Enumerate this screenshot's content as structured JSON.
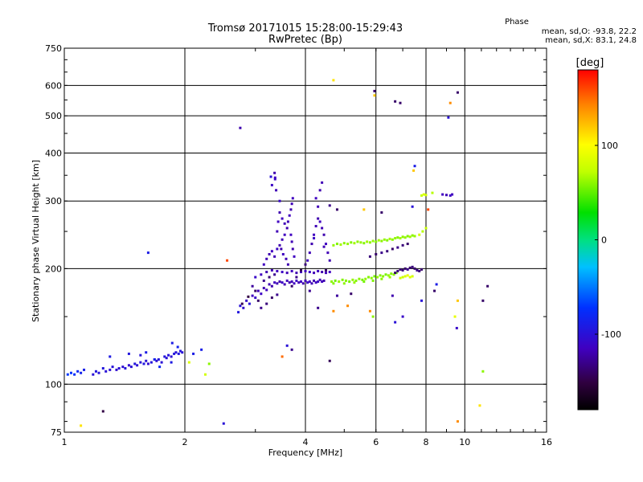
{
  "header": {
    "title": "Tromsø 20171015 15:28:00-15:29:43",
    "subtitle": "RwPretec (Bp)"
  },
  "phase_stats": {
    "heading": "Phase",
    "line1": "mean, sd,O: -93.8, 22.2",
    "line2": "mean, sd,X:  83.1, 24.8"
  },
  "colorbar": {
    "label": "[deg]",
    "ticks": [
      {
        "value": 100,
        "label": "100"
      },
      {
        "value": 0,
        "label": "0"
      },
      {
        "value": -100,
        "label": "-100"
      }
    ],
    "range": [
      -180,
      180
    ]
  },
  "chart_data": {
    "type": "scatter",
    "title": "Tromsø 20171015 15:28:00-15:29:43",
    "subtitle": "RwPretec (Bp)",
    "xlabel": "Frequency [MHz]",
    "ylabel": "Stationary phase Virtual Height [km]",
    "x_scale": "log",
    "y_scale": "log",
    "xlim": [
      1,
      16
    ],
    "ylim": [
      75,
      750
    ],
    "x_ticks": [
      {
        "value": 1,
        "label": "1"
      },
      {
        "value": 2,
        "label": "2"
      },
      {
        "value": 4,
        "label": "4"
      },
      {
        "value": 6,
        "label": "6"
      },
      {
        "value": 8,
        "label": "8"
      },
      {
        "value": 10,
        "label": "10"
      },
      {
        "value": 16,
        "label": "16"
      }
    ],
    "y_ticks": [
      {
        "value": 75,
        "label": "75"
      },
      {
        "value": 100,
        "label": "100"
      },
      {
        "value": 200,
        "label": "200"
      },
      {
        "value": 300,
        "label": "300"
      },
      {
        "value": 400,
        "label": "400"
      },
      {
        "value": 500,
        "label": "500"
      },
      {
        "value": 600,
        "label": "600"
      },
      {
        "value": 750,
        "label": "750"
      }
    ],
    "grid": true,
    "color_by": "phase_deg",
    "points": [
      [
        1.02,
        106,
        -70
      ],
      [
        1.04,
        107,
        -72
      ],
      [
        1.06,
        106,
        -75
      ],
      [
        1.08,
        108,
        -80
      ],
      [
        1.1,
        107,
        -85
      ],
      [
        1.12,
        109,
        -88
      ],
      [
        1.18,
        106,
        -100
      ],
      [
        1.2,
        108,
        -95
      ],
      [
        1.22,
        107,
        -98
      ],
      [
        1.25,
        110,
        -95
      ],
      [
        1.27,
        108,
        -100
      ],
      [
        1.3,
        109,
        -102
      ],
      [
        1.32,
        111,
        -99
      ],
      [
        1.35,
        109,
        -104
      ],
      [
        1.37,
        110,
        -100
      ],
      [
        1.4,
        111,
        -103
      ],
      [
        1.42,
        110,
        -98
      ],
      [
        1.45,
        112,
        -105
      ],
      [
        1.47,
        111,
        -100
      ],
      [
        1.5,
        113,
        -96
      ],
      [
        1.52,
        112,
        -102
      ],
      [
        1.55,
        114,
        -99
      ],
      [
        1.58,
        113,
        -95
      ],
      [
        1.6,
        115,
        -100
      ],
      [
        1.62,
        113,
        -104
      ],
      [
        1.65,
        114,
        -97
      ],
      [
        1.68,
        116,
        -100
      ],
      [
        1.7,
        115,
        -103
      ],
      [
        1.72,
        116,
        -98
      ],
      [
        1.75,
        114,
        -101
      ],
      [
        1.78,
        118,
        -96
      ],
      [
        1.8,
        117,
        -100
      ],
      [
        1.82,
        119,
        -98
      ],
      [
        1.85,
        118,
        -102
      ],
      [
        1.88,
        120,
        -95
      ],
      [
        1.9,
        121,
        -99
      ],
      [
        1.93,
        120,
        -94
      ],
      [
        1.95,
        122,
        -97
      ],
      [
        1.97,
        121,
        -100
      ],
      [
        1.3,
        118,
        -92
      ],
      [
        1.45,
        120,
        -95
      ],
      [
        1.55,
        119,
        -98
      ],
      [
        1.6,
        121,
        -90
      ],
      [
        1.68,
        116,
        -85
      ],
      [
        1.73,
        111,
        -80
      ],
      [
        1.85,
        114,
        -92
      ],
      [
        2.1,
        120,
        -90
      ],
      [
        2.2,
        123,
        -88
      ],
      [
        1.92,
        125,
        -85
      ],
      [
        1.86,
        128,
        -90
      ],
      [
        1.62,
        220,
        -90
      ],
      [
        2.25,
        106,
        80
      ],
      [
        2.3,
        113,
        60
      ],
      [
        2.05,
        114,
        85
      ],
      [
        2.72,
        154,
        -95
      ],
      [
        2.75,
        160,
        -100
      ],
      [
        2.8,
        158,
        -105
      ],
      [
        2.85,
        165,
        -110
      ],
      [
        2.9,
        162,
        -100
      ],
      [
        2.95,
        170,
        -115
      ],
      [
        3.0,
        168,
        -110
      ],
      [
        3.05,
        175,
        -118
      ],
      [
        3.1,
        172,
        -112
      ],
      [
        3.15,
        178,
        -120
      ],
      [
        3.2,
        176,
        -115
      ],
      [
        3.25,
        182,
        -118
      ],
      [
        3.3,
        180,
        -120
      ],
      [
        3.35,
        184,
        -115
      ],
      [
        3.4,
        183,
        -118
      ],
      [
        3.45,
        185,
        -120
      ],
      [
        3.5,
        184,
        -112
      ],
      [
        3.55,
        182,
        -118
      ],
      [
        3.6,
        186,
        -115
      ],
      [
        3.65,
        184,
        -120
      ],
      [
        3.7,
        185,
        -118
      ],
      [
        3.75,
        183,
        -115
      ],
      [
        3.8,
        186,
        -112
      ],
      [
        3.85,
        184,
        -118
      ],
      [
        3.9,
        185,
        -115
      ],
      [
        3.95,
        183,
        -120
      ],
      [
        4.0,
        186,
        -118
      ],
      [
        4.05,
        184,
        -112
      ],
      [
        4.1,
        185,
        -115
      ],
      [
        4.15,
        183,
        -118
      ],
      [
        4.2,
        186,
        -120
      ],
      [
        4.25,
        184,
        -115
      ],
      [
        4.3,
        185,
        -112
      ],
      [
        4.35,
        187,
        -118
      ],
      [
        4.4,
        185,
        -115
      ],
      [
        4.45,
        186,
        -120
      ],
      [
        3.0,
        190,
        -110
      ],
      [
        3.1,
        193,
        -115
      ],
      [
        3.2,
        196,
        -120
      ],
      [
        3.3,
        198,
        -118
      ],
      [
        3.4,
        197,
        -115
      ],
      [
        3.5,
        196,
        -112
      ],
      [
        3.6,
        195,
        -118
      ],
      [
        3.7,
        197,
        -115
      ],
      [
        3.8,
        195,
        -120
      ],
      [
        3.9,
        196,
        -118
      ],
      [
        4.0,
        197,
        -115
      ],
      [
        4.1,
        196,
        -112
      ],
      [
        4.2,
        195,
        -118
      ],
      [
        4.3,
        197,
        -115
      ],
      [
        4.4,
        196,
        -120
      ],
      [
        4.5,
        195,
        -118
      ],
      [
        4.6,
        196,
        -115
      ],
      [
        3.15,
        205,
        -115
      ],
      [
        3.2,
        212,
        -118
      ],
      [
        3.25,
        218,
        -120
      ],
      [
        3.3,
        222,
        -115
      ],
      [
        3.35,
        215,
        -118
      ],
      [
        3.4,
        225,
        -112
      ],
      [
        3.45,
        230,
        -120
      ],
      [
        3.5,
        238,
        -118
      ],
      [
        3.55,
        245,
        -115
      ],
      [
        3.6,
        255,
        -120
      ],
      [
        3.62,
        265,
        -118
      ],
      [
        3.65,
        275,
        -115
      ],
      [
        3.68,
        285,
        -120
      ],
      [
        3.7,
        295,
        -118
      ],
      [
        3.72,
        305,
        -115
      ],
      [
        3.68,
        245,
        -115
      ],
      [
        3.7,
        235,
        -118
      ],
      [
        3.72,
        225,
        -120
      ],
      [
        3.75,
        215,
        -115
      ],
      [
        3.4,
        250,
        -118
      ],
      [
        3.42,
        265,
        -115
      ],
      [
        3.45,
        280,
        -120
      ],
      [
        3.38,
        320,
        -118
      ],
      [
        3.36,
        345,
        -115
      ],
      [
        3.3,
        330,
        -112
      ],
      [
        3.35,
        355,
        -120
      ],
      [
        3.5,
        270,
        -115
      ],
      [
        3.55,
        262,
        -118
      ],
      [
        3.48,
        225,
        -120
      ],
      [
        3.52,
        218,
        -115
      ],
      [
        3.58,
        212,
        -118
      ],
      [
        3.62,
        205,
        -120
      ],
      [
        4.05,
        210,
        -115
      ],
      [
        4.1,
        220,
        -118
      ],
      [
        4.15,
        232,
        -120
      ],
      [
        4.2,
        245,
        -115
      ],
      [
        4.25,
        258,
        -118
      ],
      [
        4.3,
        270,
        -120
      ],
      [
        4.35,
        265,
        -115
      ],
      [
        4.4,
        255,
        -118
      ],
      [
        4.45,
        245,
        -120
      ],
      [
        4.5,
        232,
        -115
      ],
      [
        4.55,
        220,
        -118
      ],
      [
        4.6,
        210,
        -120
      ],
      [
        4.3,
        290,
        -118
      ],
      [
        4.25,
        305,
        -115
      ],
      [
        4.35,
        320,
        -120
      ],
      [
        4.4,
        335,
        -118
      ],
      [
        4.2,
        240,
        -112
      ],
      [
        4.45,
        228,
        -118
      ],
      [
        4.65,
        185,
        60
      ],
      [
        4.75,
        186,
        55
      ],
      [
        4.85,
        185,
        62
      ],
      [
        4.95,
        187,
        58
      ],
      [
        5.05,
        186,
        60
      ],
      [
        5.15,
        185,
        55
      ],
      [
        5.25,
        187,
        62
      ],
      [
        5.35,
        186,
        58
      ],
      [
        5.45,
        188,
        60
      ],
      [
        5.55,
        187,
        55
      ],
      [
        5.65,
        188,
        62
      ],
      [
        5.75,
        190,
        58
      ],
      [
        5.85,
        189,
        60
      ],
      [
        5.95,
        191,
        55
      ],
      [
        6.05,
        190,
        62
      ],
      [
        6.15,
        192,
        58
      ],
      [
        6.25,
        191,
        60
      ],
      [
        6.35,
        193,
        55
      ],
      [
        6.45,
        192,
        62
      ],
      [
        6.55,
        194,
        58
      ],
      [
        6.65,
        193,
        60
      ],
      [
        6.75,
        195,
        55
      ],
      [
        4.7,
        183,
        58
      ],
      [
        5.0,
        183,
        60
      ],
      [
        5.3,
        184,
        62
      ],
      [
        5.6,
        185,
        55
      ],
      [
        5.9,
        186,
        58
      ],
      [
        6.2,
        188,
        60
      ],
      [
        6.5,
        190,
        62
      ],
      [
        4.7,
        230,
        62
      ],
      [
        4.8,
        232,
        58
      ],
      [
        4.9,
        231,
        65
      ],
      [
        5.0,
        233,
        60
      ],
      [
        5.1,
        232,
        62
      ],
      [
        5.2,
        234,
        58
      ],
      [
        5.3,
        233,
        65
      ],
      [
        5.4,
        235,
        60
      ],
      [
        5.5,
        234,
        62
      ],
      [
        5.6,
        233,
        58
      ],
      [
        5.7,
        235,
        65
      ],
      [
        5.8,
        234,
        60
      ],
      [
        5.9,
        236,
        62
      ],
      [
        6.0,
        235,
        58
      ],
      [
        6.1,
        237,
        65
      ],
      [
        6.2,
        236,
        60
      ],
      [
        6.3,
        238,
        62
      ],
      [
        6.4,
        237,
        58
      ],
      [
        6.5,
        239,
        65
      ],
      [
        6.6,
        238,
        60
      ],
      [
        6.7,
        240,
        62
      ],
      [
        6.8,
        241,
        58
      ],
      [
        6.9,
        240,
        65
      ],
      [
        7.0,
        242,
        60
      ],
      [
        7.1,
        241,
        62
      ],
      [
        7.2,
        243,
        58
      ],
      [
        7.3,
        242,
        65
      ],
      [
        7.4,
        244,
        60
      ],
      [
        7.5,
        243,
        62
      ],
      [
        6.9,
        189,
        80
      ],
      [
        7.0,
        190,
        75
      ],
      [
        7.1,
        191,
        85
      ],
      [
        7.2,
        192,
        90
      ],
      [
        7.3,
        190,
        85
      ],
      [
        7.4,
        191,
        80
      ],
      [
        7.8,
        310,
        75
      ],
      [
        7.9,
        312,
        85
      ],
      [
        8.0,
        311,
        80
      ],
      [
        8.3,
        315,
        70
      ],
      [
        8.8,
        312,
        -115
      ],
      [
        9.0,
        311,
        -118
      ],
      [
        9.2,
        310,
        -112
      ],
      [
        9.3,
        312,
        -115
      ],
      [
        7.85,
        250,
        70
      ],
      [
        8.0,
        255,
        75
      ],
      [
        7.7,
        245,
        80
      ],
      [
        6.7,
        195,
        -140
      ],
      [
        6.8,
        197,
        -135
      ],
      [
        6.9,
        199,
        -140
      ],
      [
        7.0,
        198,
        -135
      ],
      [
        7.1,
        200,
        -140
      ],
      [
        7.2,
        199,
        -130
      ],
      [
        7.3,
        201,
        -140
      ],
      [
        7.4,
        202,
        -135
      ],
      [
        7.5,
        200,
        -140
      ],
      [
        7.6,
        198,
        -130
      ],
      [
        7.7,
        197,
        -135
      ],
      [
        7.8,
        199,
        -140
      ],
      [
        5.8,
        215,
        -135
      ],
      [
        6.0,
        218,
        -140
      ],
      [
        6.2,
        220,
        -130
      ],
      [
        6.4,
        222,
        -135
      ],
      [
        6.6,
        225,
        -140
      ],
      [
        6.8,
        227,
        -130
      ],
      [
        7.0,
        230,
        -135
      ],
      [
        7.2,
        232,
        -140
      ],
      [
        3.05,
        165,
        -140
      ],
      [
        3.1,
        158,
        -130
      ],
      [
        3.2,
        162,
        -135
      ],
      [
        3.3,
        168,
        -140
      ],
      [
        3.4,
        171,
        -130
      ],
      [
        3.0,
        175,
        -140
      ],
      [
        2.95,
        180,
        -125
      ],
      [
        3.15,
        186,
        -130
      ],
      [
        3.25,
        190,
        -135
      ],
      [
        3.35,
        193,
        -128
      ],
      [
        2.88,
        169,
        -150
      ],
      [
        2.78,
        162,
        -145
      ],
      [
        3.7,
        180,
        -140
      ],
      [
        3.8,
        190,
        -130
      ],
      [
        3.9,
        198,
        -145
      ],
      [
        4.0,
        205,
        -135
      ],
      [
        4.5,
        198,
        -140
      ],
      [
        4.1,
        175,
        -128
      ],
      [
        4.7,
        619,
        110
      ],
      [
        5.95,
        580,
        -140
      ],
      [
        5.95,
        565,
        120
      ],
      [
        6.7,
        545,
        -140
      ],
      [
        6.9,
        540,
        -140
      ],
      [
        9.2,
        540,
        140
      ],
      [
        9.6,
        575,
        -140
      ],
      [
        9.1,
        495,
        -100
      ],
      [
        2.75,
        465,
        -120
      ],
      [
        3.36,
        342,
        -110
      ],
      [
        3.28,
        347,
        -100
      ],
      [
        3.45,
        300,
        -110
      ],
      [
        4.6,
        292,
        -130
      ],
      [
        4.8,
        285,
        -140
      ],
      [
        5.6,
        285,
        120
      ],
      [
        6.2,
        280,
        -140
      ],
      [
        7.4,
        290,
        -100
      ],
      [
        7.5,
        370,
        -90
      ],
      [
        7.45,
        360,
        120
      ],
      [
        8.1,
        285,
        160
      ],
      [
        2.55,
        210,
        160
      ],
      [
        9.6,
        165,
        120
      ],
      [
        9.45,
        150,
        90
      ],
      [
        9.55,
        140,
        -110
      ],
      [
        11.1,
        165,
        -140
      ],
      [
        11.4,
        180,
        -140
      ],
      [
        10.9,
        88,
        110
      ],
      [
        9.6,
        80,
        140
      ],
      [
        11.1,
        108,
        60
      ],
      [
        2.5,
        79,
        -100
      ],
      [
        1.25,
        85,
        -150
      ],
      [
        1.1,
        78,
        110
      ],
      [
        3.5,
        118,
        150
      ],
      [
        3.7,
        123,
        -130
      ],
      [
        3.6,
        126,
        -100
      ],
      [
        4.6,
        115,
        -145
      ],
      [
        4.7,
        155,
        140
      ],
      [
        4.3,
        158,
        -130
      ],
      [
        5.1,
        160,
        140
      ],
      [
        5.8,
        155,
        140
      ],
      [
        5.9,
        150,
        60
      ],
      [
        6.6,
        170,
        -120
      ],
      [
        7.8,
        165,
        -100
      ],
      [
        8.4,
        175,
        -140
      ],
      [
        8.5,
        182,
        -90
      ],
      [
        4.8,
        170,
        -125
      ],
      [
        5.2,
        172,
        -140
      ],
      [
        6.7,
        145,
        -100
      ],
      [
        7.0,
        150,
        -110
      ]
    ]
  }
}
